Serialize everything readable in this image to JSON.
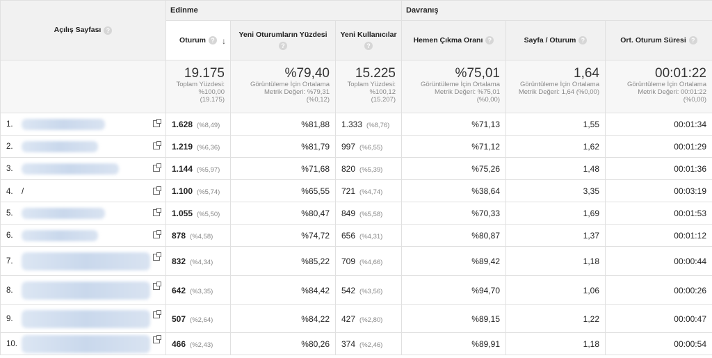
{
  "header": {
    "page_col": "Açılış Sayfası",
    "group_acq": "Edinme",
    "group_beh": "Davranış",
    "cols": {
      "sessions": "Oturum",
      "new_sess_pct": "Yeni Oturumların Yüzdesi",
      "new_users": "Yeni Kullanıcılar",
      "bounce": "Hemen Çıkma Oranı",
      "pps": "Sayfa / Oturum",
      "avg_dur": "Ort. Oturum Süresi"
    }
  },
  "totals": {
    "sessions": {
      "big": "19.175",
      "l1": "Toplam Yüzdesi:",
      "l2": "%100,00",
      "l3": "(19.175)"
    },
    "new_sess_pct": {
      "big": "%79,40",
      "l1": "Görüntüleme İçin Ortalama",
      "l2": "Metrik Değeri: %79,31",
      "l3": "(%0,12)"
    },
    "new_users": {
      "big": "15.225",
      "l1": "Toplam Yüzdesi:",
      "l2": "%100,12",
      "l3": "(15.207)"
    },
    "bounce": {
      "big": "%75,01",
      "l1": "Görüntüleme İçin Ortalama",
      "l2": "Metrik Değeri: %75,01",
      "l3": "(%0,00)"
    },
    "pps": {
      "big": "1,64",
      "l1": "Görüntüleme İçin Ortalama",
      "l2": "Metrik Değeri: 1,64 (%0,00)",
      "l3": ""
    },
    "avg_dur": {
      "big": "00:01:22",
      "l1": "Görüntüleme İçin Ortalama",
      "l2": "Metrik Değeri: 00:01:22",
      "l3": "(%0,00)"
    }
  },
  "rows": [
    {
      "idx": "1.",
      "page": "",
      "sessions": "1.628",
      "sess_pct": "(%8,49)",
      "new_pct": "%81,88",
      "new_users": "1.333",
      "nu_pct": "(%8,76)",
      "bounce": "%71,13",
      "pps": "1,55",
      "dur": "00:01:34"
    },
    {
      "idx": "2.",
      "page": "",
      "sessions": "1.219",
      "sess_pct": "(%6,36)",
      "new_pct": "%81,79",
      "new_users": "997",
      "nu_pct": "(%6,55)",
      "bounce": "%71,12",
      "pps": "1,62",
      "dur": "00:01:29"
    },
    {
      "idx": "3.",
      "page": "",
      "sessions": "1.144",
      "sess_pct": "(%5,97)",
      "new_pct": "%71,68",
      "new_users": "820",
      "nu_pct": "(%5,39)",
      "bounce": "%75,26",
      "pps": "1,48",
      "dur": "00:01:36"
    },
    {
      "idx": "4.",
      "page": "/",
      "sessions": "1.100",
      "sess_pct": "(%5,74)",
      "new_pct": "%65,55",
      "new_users": "721",
      "nu_pct": "(%4,74)",
      "bounce": "%38,64",
      "pps": "3,35",
      "dur": "00:03:19"
    },
    {
      "idx": "5.",
      "page": "",
      "sessions": "1.055",
      "sess_pct": "(%5,50)",
      "new_pct": "%80,47",
      "new_users": "849",
      "nu_pct": "(%5,58)",
      "bounce": "%70,33",
      "pps": "1,69",
      "dur": "00:01:53"
    },
    {
      "idx": "6.",
      "page": "",
      "sessions": "878",
      "sess_pct": "(%4,58)",
      "new_pct": "%74,72",
      "new_users": "656",
      "nu_pct": "(%4,31)",
      "bounce": "%80,87",
      "pps": "1,37",
      "dur": "00:01:12"
    },
    {
      "idx": "7.",
      "page": "",
      "sessions": "832",
      "sess_pct": "(%4,34)",
      "new_pct": "%85,22",
      "new_users": "709",
      "nu_pct": "(%4,66)",
      "bounce": "%89,42",
      "pps": "1,18",
      "dur": "00:00:44"
    },
    {
      "idx": "8.",
      "page": "",
      "sessions": "642",
      "sess_pct": "(%3,35)",
      "new_pct": "%84,42",
      "new_users": "542",
      "nu_pct": "(%3,56)",
      "bounce": "%94,70",
      "pps": "1,06",
      "dur": "00:00:26"
    },
    {
      "idx": "9.",
      "page": "",
      "sessions": "507",
      "sess_pct": "(%2,64)",
      "new_pct": "%84,22",
      "new_users": "427",
      "nu_pct": "(%2,80)",
      "bounce": "%89,15",
      "pps": "1,22",
      "dur": "00:00:47"
    },
    {
      "idx": "10.",
      "page": "",
      "sessions": "466",
      "sess_pct": "(%2,43)",
      "new_pct": "%80,26",
      "new_users": "374",
      "nu_pct": "(%2,46)",
      "bounce": "%89,91",
      "pps": "1,18",
      "dur": "00:00:54"
    }
  ]
}
